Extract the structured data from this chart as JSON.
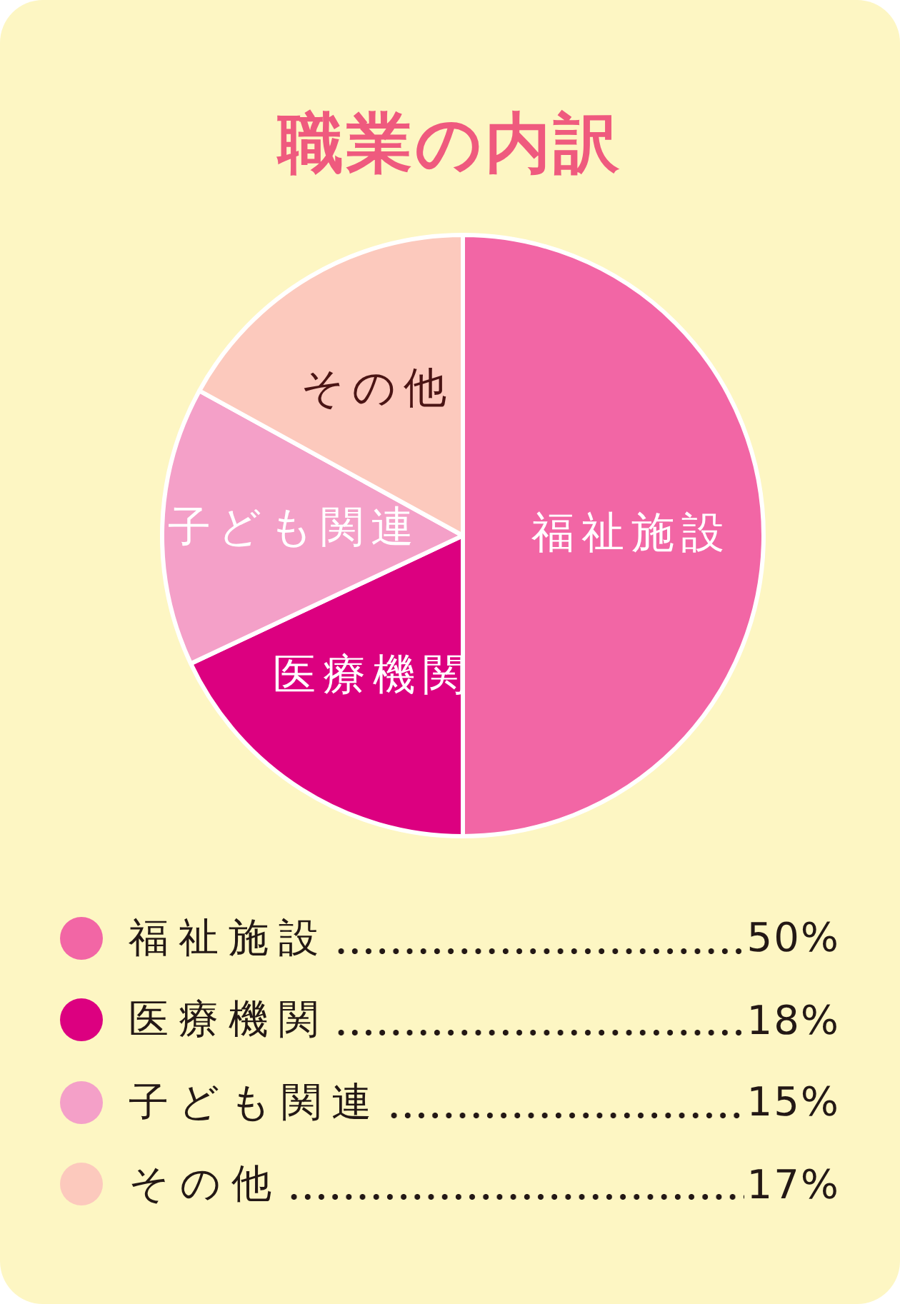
{
  "chart_data": {
    "type": "pie",
    "title": "職業の内訳",
    "categories": [
      "福祉施設",
      "医療機関",
      "子ども関連",
      "その他"
    ],
    "values": [
      50,
      18,
      15,
      17
    ],
    "colors": [
      "#f266a5",
      "#dc0080",
      "#f4a0c8",
      "#fcc9bd"
    ],
    "value_labels": [
      "50%",
      "18%",
      "15%",
      "17%"
    ],
    "legend": "bottom"
  }
}
